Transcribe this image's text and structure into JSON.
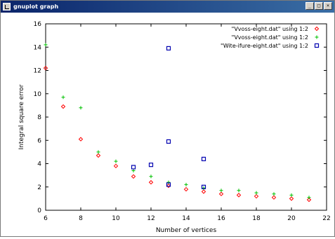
{
  "window": {
    "title": "gnuplot graph",
    "controls": {
      "minimize": "_",
      "maximize": "□",
      "close": "×"
    }
  },
  "chart_data": {
    "type": "scatter",
    "xlabel": "Number of vertices",
    "ylabel": "Integral square error",
    "xlim": [
      6,
      22
    ],
    "ylim": [
      0,
      16
    ],
    "xticks": [
      6,
      8,
      10,
      12,
      14,
      16,
      18,
      20,
      22
    ],
    "yticks": [
      0,
      2,
      4,
      6,
      8,
      10,
      12,
      14,
      16
    ],
    "grid": false,
    "legend_position": "top-right",
    "series": [
      {
        "name": "\"Vvoss-eight.dat\" using 1:2",
        "marker": "diamond",
        "color": "#ff0000",
        "points": [
          [
            6,
            12.2
          ],
          [
            7,
            8.9
          ],
          [
            8,
            6.1
          ],
          [
            9,
            4.7
          ],
          [
            10,
            3.8
          ],
          [
            11,
            2.9
          ],
          [
            12,
            2.4
          ],
          [
            13,
            2.1
          ],
          [
            14,
            1.8
          ],
          [
            15,
            1.6
          ],
          [
            16,
            1.4
          ],
          [
            17,
            1.3
          ],
          [
            18,
            1.2
          ],
          [
            19,
            1.1
          ],
          [
            20,
            1.0
          ],
          [
            21,
            0.9
          ]
        ]
      },
      {
        "name": "\"Vvoss-eight.dat\" using 1:2",
        "marker": "plus",
        "color": "#00c000",
        "points": [
          [
            6,
            14.2
          ],
          [
            7,
            9.7
          ],
          [
            8,
            8.8
          ],
          [
            9,
            5.0
          ],
          [
            10,
            4.2
          ],
          [
            11,
            3.4
          ],
          [
            12,
            2.9
          ],
          [
            13,
            2.4
          ],
          [
            14,
            2.2
          ],
          [
            15,
            1.9
          ],
          [
            16,
            1.7
          ],
          [
            17,
            1.7
          ],
          [
            18,
            1.5
          ],
          [
            19,
            1.4
          ],
          [
            20,
            1.3
          ],
          [
            21,
            1.1
          ]
        ]
      },
      {
        "name": "\"Wite-ifure-eight.dat\" using 1:2",
        "marker": "square",
        "color": "#0000b0",
        "points": [
          [
            11,
            3.7
          ],
          [
            12,
            3.9
          ],
          [
            13,
            13.9
          ],
          [
            13,
            5.9
          ],
          [
            13,
            2.2
          ],
          [
            15,
            4.4
          ],
          [
            15,
            2.0
          ]
        ]
      }
    ]
  }
}
